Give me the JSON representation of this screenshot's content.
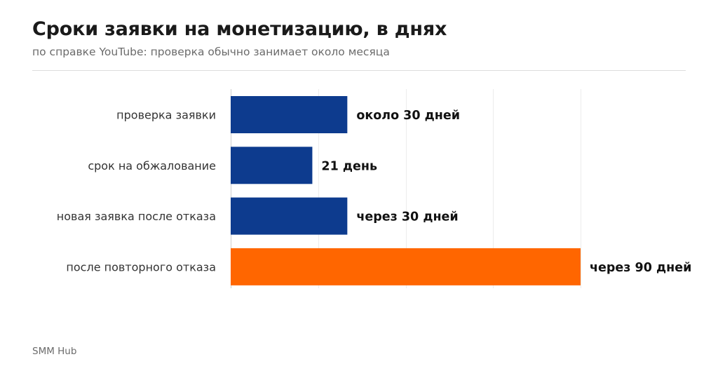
{
  "header": {
    "title": "Сроки заявки на монетизацию, в днях",
    "subtitle": "по справке YouTube: проверка обычно занимает около месяца"
  },
  "footer": {
    "source": "SMM Hub"
  },
  "chart_data": {
    "type": "bar",
    "orientation": "horizontal",
    "categories": [
      "проверка заявки",
      "срок на обжалование",
      "новая заявка после отказа",
      "после повторного отказа"
    ],
    "values": [
      30,
      21,
      30,
      90
    ],
    "value_labels": [
      "около 30 дней",
      "21 день",
      "через 30 дней",
      "через 90 дней"
    ],
    "bar_colors": [
      "#0d3b8e",
      "#0d3b8e",
      "#0d3b8e",
      "#ff6600"
    ],
    "xlim": [
      0,
      90
    ],
    "grid": true,
    "legend": "none"
  }
}
